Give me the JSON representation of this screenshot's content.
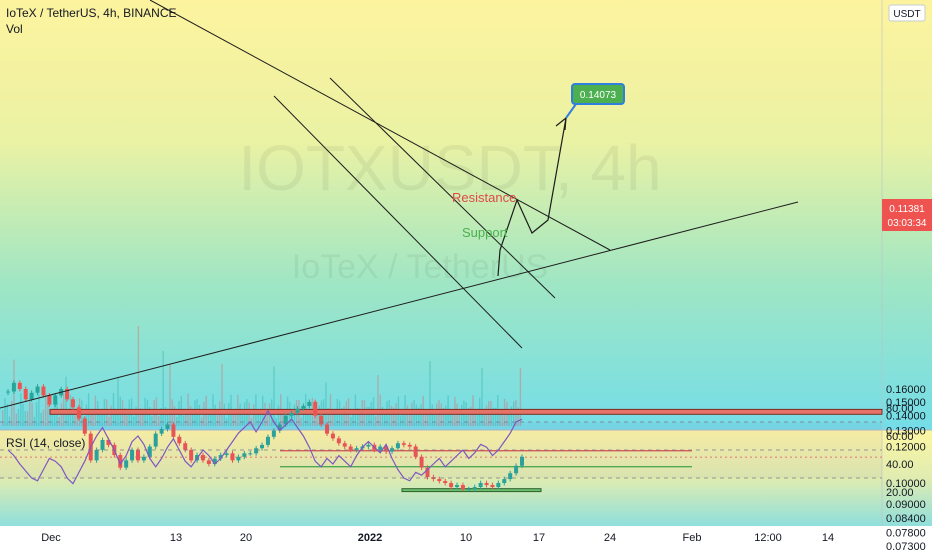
{
  "header": {
    "symbol_line": "IoTeX / TetherUS, 4h, BINANCE",
    "volume_label": "Vol",
    "currency": "USDT"
  },
  "watermark": {
    "ticker": "IOTXUSDT, 4h",
    "name": "IoTeX / TetherUS"
  },
  "price_tag": {
    "value": "0.11381",
    "countdown": "03:03:34"
  },
  "target_label": "0.14073",
  "annotations": {
    "resistance": "Resistance",
    "support": "Support"
  },
  "rsi": {
    "label": "RSI (14, close)"
  },
  "colors": {
    "red_zone": "#e57368",
    "green_zone": "#6cc16f",
    "resistance": "#e04a4a",
    "support": "#4caf50",
    "rsi_line": "#7e57c2",
    "target_box": "#4caf50",
    "price_tag": "#ef5350"
  },
  "chart_data": [
    {
      "type": "line",
      "title": "IoTeX / TetherUS, 4h, BINANCE",
      "ylabel": "USDT",
      "yscale": "log",
      "ylim": [
        0.0695,
        0.18
      ],
      "y_ticks": [
        "0.16000",
        "0.15000",
        "0.14000",
        "0.13000",
        "0.12000",
        "0.10000",
        "0.09000",
        "0.08400",
        "0.07800",
        "0.07300"
      ],
      "x_ticks": [
        "Dec",
        "13",
        "20",
        "2022",
        "10",
        "17",
        "24",
        "Feb",
        "12:00",
        "14"
      ],
      "series": [
        {
          "values": [
            0.158,
            0.165,
            0.16,
            0.152,
            0.157,
            0.162,
            0.155,
            0.148,
            0.155,
            0.16,
            0.152,
            0.146,
            0.138,
            0.128,
            0.112,
            0.118,
            0.124,
            0.121,
            0.115,
            0.108,
            0.112,
            0.118,
            0.112,
            0.114,
            0.12,
            0.128,
            0.131,
            0.134,
            0.126,
            0.122,
            0.118,
            0.112,
            0.115,
            0.112,
            0.11,
            0.113,
            0.115,
            0.116,
            0.112,
            0.114,
            0.116,
            0.116,
            0.119,
            0.121,
            0.126,
            0.13,
            0.134,
            0.14,
            0.142,
            0.145,
            0.147,
            0.15,
            0.14,
            0.134,
            0.128,
            0.125,
            0.122,
            0.12,
            0.118,
            0.119,
            0.12,
            0.121,
            0.118,
            0.12,
            0.117,
            0.119,
            0.122,
            0.121,
            0.12,
            0.114,
            0.108,
            0.103,
            0.102,
            0.101,
            0.1,
            0.098,
            0.099,
            0.097,
            0.097,
            0.098,
            0.1,
            0.099,
            0.098,
            0.1,
            0.102,
            0.105,
            0.109,
            0.114
          ]
        }
      ],
      "levels": {
        "resistance_zone": [
          0.141,
          0.1445
        ],
        "resistance": 0.1175,
        "support": 0.1085,
        "support_zone": [
          0.0958,
          0.0972
        ],
        "target": 0.14073,
        "last_price": 0.11381
      }
    },
    {
      "type": "line",
      "title": "RSI (14, close)",
      "ylim": [
        20,
        80
      ],
      "y_ticks": [
        "80.00",
        "60.00",
        "40.00",
        "20.00"
      ],
      "series": [
        {
          "values": [
            50,
            46,
            40,
            35,
            30,
            28,
            36,
            44,
            42,
            38,
            30,
            26,
            34,
            42,
            52,
            60,
            66,
            58,
            50,
            40,
            46,
            56,
            60,
            54,
            44,
            38,
            44,
            52,
            58,
            50,
            42,
            38,
            44,
            50,
            46,
            40,
            44,
            50,
            56,
            62,
            66,
            70,
            63,
            70,
            78,
            70,
            64,
            68,
            72,
            66,
            60,
            52,
            42,
            38,
            44,
            40,
            46,
            42,
            38,
            46,
            52,
            56,
            52,
            48,
            54,
            44,
            36,
            30,
            28,
            34,
            32,
            36,
            40,
            44,
            38,
            42,
            46,
            50,
            44,
            48,
            54,
            52,
            46,
            50,
            56,
            62,
            70,
            72
          ]
        }
      ]
    }
  ]
}
